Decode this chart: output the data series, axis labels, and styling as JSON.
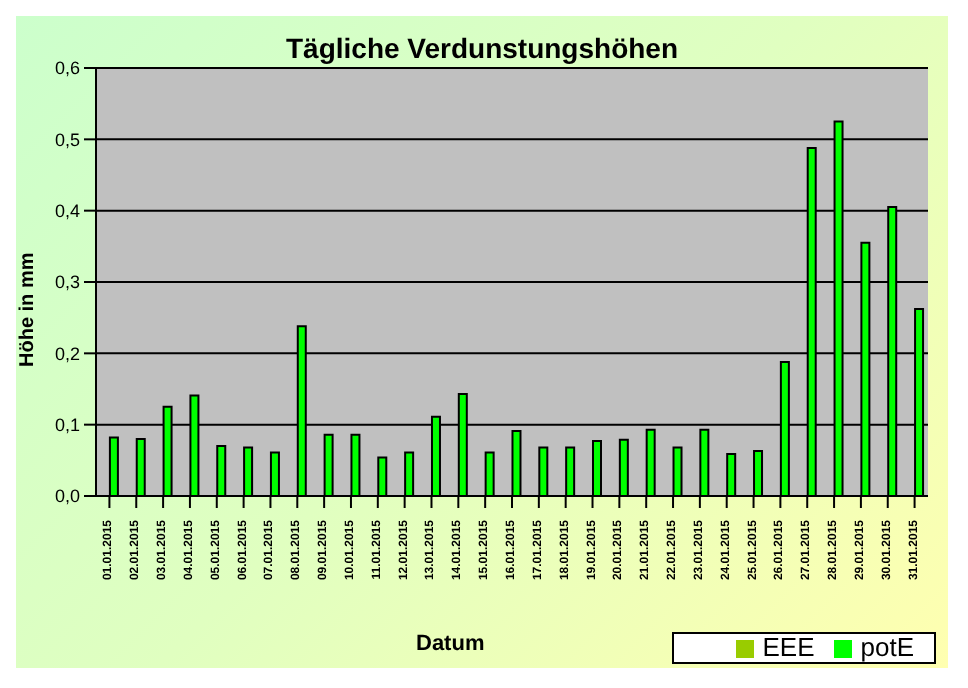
{
  "chart_data": {
    "type": "bar",
    "title": "Tägliche Verdunstungshöhen",
    "xlabel": "Datum",
    "ylabel": "Höhe in mm",
    "categories": [
      "01.01.2015",
      "02.01.2015",
      "03.01.2015",
      "04.01.2015",
      "05.01.2015",
      "06.01.2015",
      "07.01.2015",
      "08.01.2015",
      "09.01.2015",
      "10.01.2015",
      "11.01.2015",
      "12.01.2015",
      "13.01.2015",
      "14.01.2015",
      "15.01.2015",
      "16.01.2015",
      "17.01.2015",
      "18.01.2015",
      "19.01.2015",
      "20.01.2015",
      "21.01.2015",
      "22.01.2015",
      "23.01.2015",
      "24.01.2015",
      "25.01.2015",
      "26.01.2015",
      "27.01.2015",
      "28.01.2015",
      "29.01.2015",
      "30.01.2015",
      "31.01.2015"
    ],
    "series": [
      {
        "name": "EEE",
        "color": "#99cc00",
        "values": [
          null,
          null,
          null,
          null,
          null,
          null,
          null,
          null,
          null,
          null,
          null,
          null,
          null,
          null,
          null,
          null,
          null,
          null,
          null,
          null,
          null,
          null,
          null,
          null,
          null,
          null,
          null,
          null,
          null,
          null,
          null
        ]
      },
      {
        "name": "potE",
        "color": "#00ff00",
        "values": [
          0.082,
          0.08,
          0.125,
          0.141,
          0.07,
          0.068,
          0.061,
          0.238,
          0.086,
          0.086,
          0.054,
          0.061,
          0.111,
          0.143,
          0.061,
          0.091,
          0.068,
          0.068,
          0.077,
          0.079,
          0.093,
          0.068,
          0.093,
          0.059,
          0.063,
          0.188,
          0.488,
          0.525,
          0.355,
          0.405,
          0.262
        ]
      }
    ],
    "ylim": [
      0,
      0.6
    ],
    "yticks": [
      {
        "value": 0,
        "label": "0,0"
      },
      {
        "value": 0.1,
        "label": "0,1"
      },
      {
        "value": 0.2,
        "label": "0,2"
      },
      {
        "value": 0.3,
        "label": "0,3"
      },
      {
        "value": 0.4,
        "label": "0,4"
      },
      {
        "value": 0.5,
        "label": "0,5"
      },
      {
        "value": 0.6,
        "label": "0,6"
      }
    ],
    "grid": "y",
    "legend": "bottom right"
  }
}
